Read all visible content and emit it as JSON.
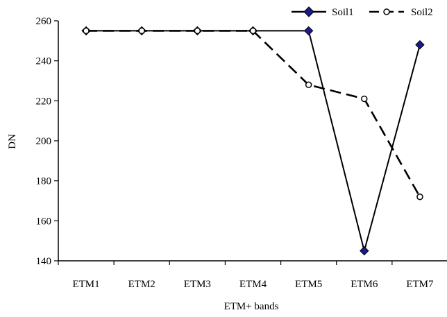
{
  "chart_data": {
    "type": "line",
    "title": "",
    "xlabel": "ETM+ bands",
    "ylabel": "DN",
    "categories": [
      "ETM1",
      "ETM2",
      "ETM3",
      "ETM4",
      "ETM5",
      "ETM6",
      "ETM7"
    ],
    "ylim": [
      140,
      260
    ],
    "yticks": [
      140,
      160,
      180,
      200,
      220,
      240,
      260
    ],
    "grid": false,
    "legend_position": "top-right",
    "series": [
      {
        "name": "Soil1",
        "values": [
          255,
          255,
          255,
          255,
          255,
          145,
          248
        ],
        "color": "#000000",
        "marker": "diamond-filled",
        "line": "solid"
      },
      {
        "name": "Soil2",
        "values": [
          255,
          255,
          255,
          255,
          228,
          221,
          172
        ],
        "color": "#000000",
        "marker": "circle-open",
        "line": "dashed"
      }
    ]
  }
}
